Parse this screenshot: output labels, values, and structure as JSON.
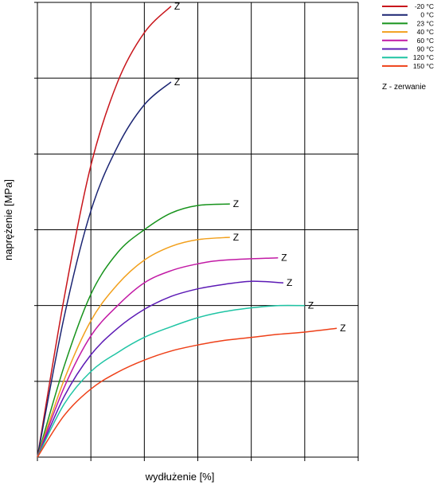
{
  "chart_data": {
    "type": "line",
    "title": "",
    "xlabel": "wydłużenie [%]",
    "ylabel": "naprężenie [MPa]",
    "xlim": [
      0,
      6
    ],
    "ylim": [
      0,
      6
    ],
    "grid": true,
    "tick_labels_shown": false,
    "legend_position": "top-right",
    "end_marker": "Z",
    "note": "Z - zerwanie",
    "series": [
      {
        "name": "-20 °C",
        "color": "#c8161c",
        "points": [
          [
            0,
            0
          ],
          [
            0.5,
            2.1
          ],
          [
            1,
            3.85
          ],
          [
            1.5,
            4.95
          ],
          [
            2,
            5.6
          ],
          [
            2.5,
            5.95
          ]
        ]
      },
      {
        "name": "0 °C",
        "color": "#1a2472",
        "points": [
          [
            0,
            0
          ],
          [
            0.5,
            1.85
          ],
          [
            1,
            3.25
          ],
          [
            1.5,
            4.1
          ],
          [
            2,
            4.65
          ],
          [
            2.5,
            4.95
          ]
        ]
      },
      {
        "name": "23 °C",
        "color": "#17931c",
        "points": [
          [
            0,
            0
          ],
          [
            0.5,
            1.2
          ],
          [
            1,
            2.15
          ],
          [
            1.5,
            2.7
          ],
          [
            2,
            3.0
          ],
          [
            2.5,
            3.22
          ],
          [
            3,
            3.32
          ],
          [
            3.6,
            3.34
          ]
        ]
      },
      {
        "name": "40 °C",
        "color": "#f2a01c",
        "points": [
          [
            0,
            0
          ],
          [
            0.5,
            1.02
          ],
          [
            1,
            1.8
          ],
          [
            1.5,
            2.28
          ],
          [
            2,
            2.6
          ],
          [
            2.5,
            2.78
          ],
          [
            3,
            2.87
          ],
          [
            3.6,
            2.9
          ]
        ]
      },
      {
        "name": "60 °C",
        "color": "#c21aa5",
        "points": [
          [
            0,
            0
          ],
          [
            0.5,
            0.92
          ],
          [
            1,
            1.6
          ],
          [
            1.5,
            2.0
          ],
          [
            2,
            2.3
          ],
          [
            2.5,
            2.46
          ],
          [
            3,
            2.55
          ],
          [
            3.5,
            2.6
          ],
          [
            4.5,
            2.63
          ]
        ]
      },
      {
        "name": "90 °C",
        "color": "#5c1ab5",
        "points": [
          [
            0,
            0
          ],
          [
            0.5,
            0.8
          ],
          [
            1,
            1.35
          ],
          [
            1.5,
            1.7
          ],
          [
            2,
            1.95
          ],
          [
            2.5,
            2.12
          ],
          [
            3,
            2.22
          ],
          [
            3.5,
            2.28
          ],
          [
            4,
            2.32
          ],
          [
            4.6,
            2.3
          ]
        ]
      },
      {
        "name": "120 °C",
        "color": "#1fc4a4",
        "points": [
          [
            0,
            0
          ],
          [
            0.5,
            0.7
          ],
          [
            1,
            1.13
          ],
          [
            1.5,
            1.38
          ],
          [
            2,
            1.58
          ],
          [
            2.5,
            1.72
          ],
          [
            3,
            1.84
          ],
          [
            3.5,
            1.92
          ],
          [
            4,
            1.97
          ],
          [
            4.5,
            2.0
          ],
          [
            5,
            2.0
          ]
        ]
      },
      {
        "name": "150 °C",
        "color": "#ee4018",
        "points": [
          [
            0,
            0
          ],
          [
            0.5,
            0.55
          ],
          [
            1,
            0.9
          ],
          [
            1.5,
            1.12
          ],
          [
            2,
            1.28
          ],
          [
            2.5,
            1.4
          ],
          [
            3,
            1.48
          ],
          [
            3.5,
            1.54
          ],
          [
            4,
            1.58
          ],
          [
            4.5,
            1.62
          ],
          [
            5,
            1.65
          ],
          [
            5.6,
            1.7
          ]
        ]
      }
    ]
  }
}
